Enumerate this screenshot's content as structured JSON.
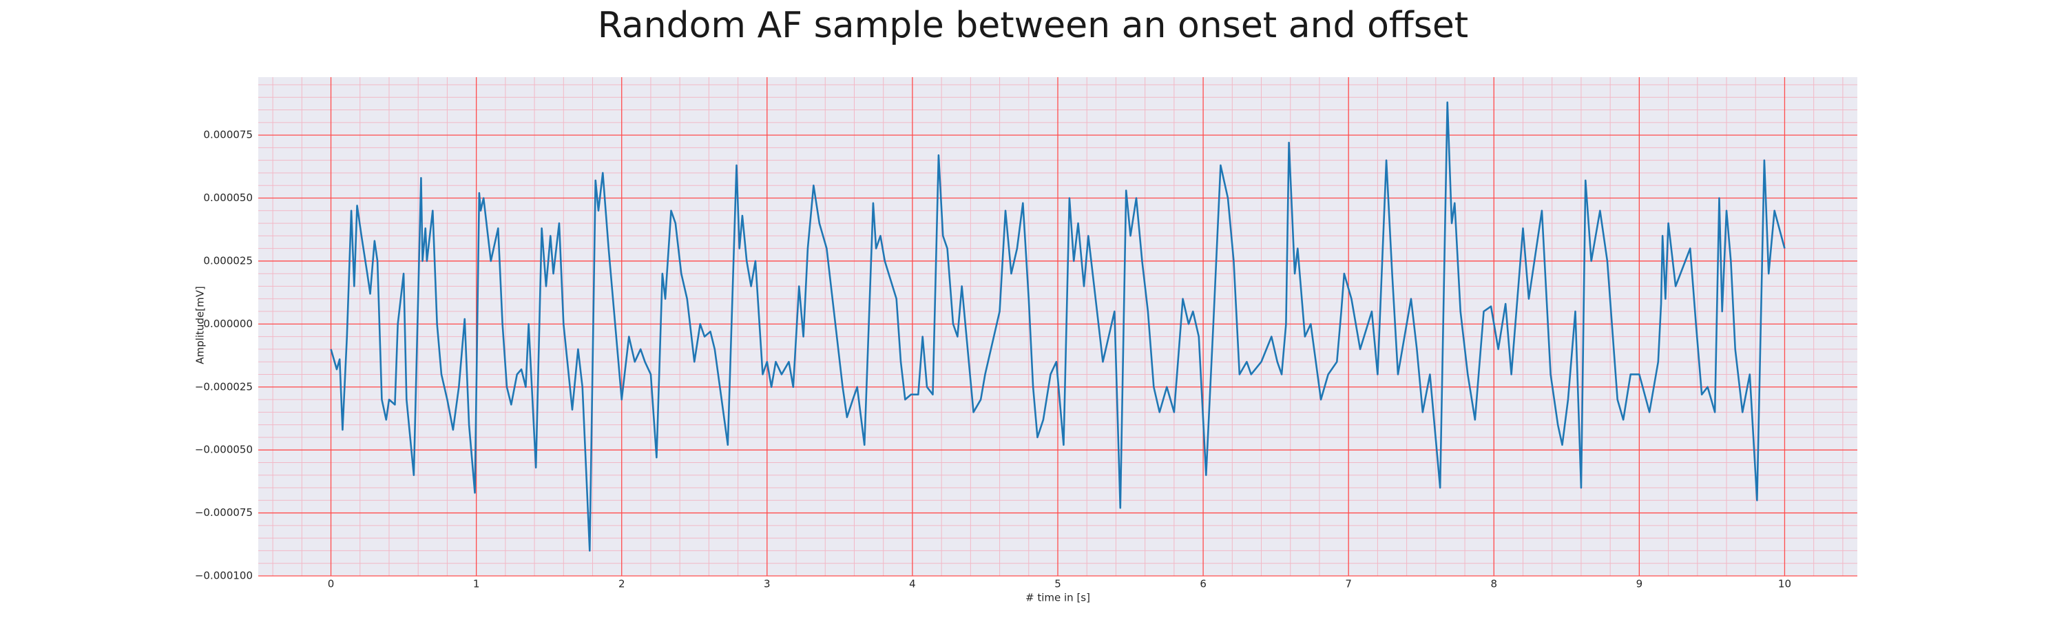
{
  "chart_data": {
    "type": "line",
    "title": "Random AF sample between an onset and offset",
    "xlabel": "# time in [s]",
    "ylabel": "Amplitude[mV]",
    "color": "#1f77b4",
    "background": "#eaeaf2",
    "grid": true,
    "grid_color": "#ff4d4d",
    "minor_grid": true,
    "minor_grid_color": "#f2b8c6",
    "minor_divisions": 5,
    "xlim": [
      -0.5,
      10.5
    ],
    "ylim": [
      -0.0001,
      9.8e-05
    ],
    "xticks": [
      0,
      1,
      2,
      3,
      4,
      5,
      6,
      7,
      8,
      9,
      10
    ],
    "yticks": [
      {
        "value": 7.5e-05,
        "label": "0.000075"
      },
      {
        "value": 5e-05,
        "label": "0.000050"
      },
      {
        "value": 2.5e-05,
        "label": "0.000025"
      },
      {
        "value": 0,
        "label": "0.000000"
      },
      {
        "value": -2.5e-05,
        "label": "−0.000025"
      },
      {
        "value": -5e-05,
        "label": "−0.000050"
      },
      {
        "value": -7.5e-05,
        "label": "−0.000075"
      },
      {
        "value": -0.0001,
        "label": "−0.000100"
      }
    ],
    "x": [
      0,
      0.04,
      0.06,
      0.08,
      0.11,
      0.14,
      0.16,
      0.18,
      0.21,
      0.25,
      0.27,
      0.3,
      0.32,
      0.35,
      0.38,
      0.4,
      0.44,
      0.46,
      0.5,
      0.52,
      0.57,
      0.62,
      0.63,
      0.65,
      0.66,
      0.7,
      0.73,
      0.76,
      0.8,
      0.84,
      0.88,
      0.92,
      0.95,
      0.99,
      1.02,
      1.03,
      1.05,
      1.08,
      1.1,
      1.15,
      1.18,
      1.21,
      1.24,
      1.28,
      1.31,
      1.34,
      1.36,
      1.41,
      1.45,
      1.48,
      1.51,
      1.53,
      1.57,
      1.6,
      1.66,
      1.7,
      1.73,
      1.78,
      1.82,
      1.84,
      1.87,
      1.91,
      1.94,
      2.0,
      2.05,
      2.09,
      2.13,
      2.16,
      2.2,
      2.24,
      2.28,
      2.3,
      2.34,
      2.37,
      2.41,
      2.45,
      2.5,
      2.54,
      2.57,
      2.61,
      2.64,
      2.73,
      2.79,
      2.81,
      2.83,
      2.86,
      2.89,
      2.92,
      2.97,
      3.0,
      3.03,
      3.06,
      3.1,
      3.15,
      3.18,
      3.22,
      3.25,
      3.28,
      3.32,
      3.36,
      3.41,
      3.45,
      3.52,
      3.55,
      3.59,
      3.62,
      3.67,
      3.73,
      3.75,
      3.78,
      3.81,
      3.89,
      3.92,
      3.95,
      3.99,
      4.04,
      4.07,
      4.1,
      4.14,
      4.18,
      4.21,
      4.24,
      4.28,
      4.31,
      4.34,
      4.38,
      4.42,
      4.47,
      4.5,
      4.56,
      4.6,
      4.64,
      4.68,
      4.72,
      4.76,
      4.8,
      4.83,
      4.86,
      4.9,
      4.95,
      4.99,
      5.04,
      5.08,
      5.11,
      5.14,
      5.18,
      5.21,
      5.26,
      5.31,
      5.35,
      5.39,
      5.43,
      5.47,
      5.5,
      5.54,
      5.58,
      5.62,
      5.66,
      5.7,
      5.75,
      5.8,
      5.86,
      5.9,
      5.93,
      5.97,
      6.02,
      6.07,
      6.12,
      6.17,
      6.21,
      6.25,
      6.3,
      6.33,
      6.4,
      6.47,
      6.51,
      6.54,
      6.57,
      6.59,
      6.63,
      6.65,
      6.7,
      6.74,
      6.81,
      6.86,
      6.92,
      6.95,
      6.97,
      7.02,
      7.08,
      7.16,
      7.2,
      7.26,
      7.3,
      7.34,
      7.43,
      7.47,
      7.51,
      7.56,
      7.63,
      7.68,
      7.71,
      7.73,
      7.77,
      7.82,
      7.87,
      7.93,
      7.98,
      8.03,
      8.08,
      8.12,
      8.2,
      8.24,
      8.33,
      8.39,
      8.44,
      8.47,
      8.51,
      8.56,
      8.6,
      8.63,
      8.67,
      8.73,
      8.78,
      8.85,
      8.89,
      8.94,
      9.0,
      9.07,
      9.13,
      9.15,
      9.16,
      9.18,
      9.2,
      9.25,
      9.35,
      9.39,
      9.43,
      9.47,
      9.52,
      9.55,
      9.57,
      9.6,
      9.63,
      9.66,
      9.71,
      9.76,
      9.81,
      9.86,
      9.89,
      9.93,
      10.0
    ],
    "values": [
      -1e-05,
      -1.8e-05,
      -1.4e-05,
      -4.2e-05,
      -5e-06,
      4.5e-05,
      1.5e-05,
      4.7e-05,
      3.5e-05,
      2e-05,
      1.2e-05,
      3.3e-05,
      2.5e-05,
      -3e-05,
      -3.8e-05,
      -3e-05,
      -3.2e-05,
      0,
      2e-05,
      -3e-05,
      -6e-05,
      5.8e-05,
      2.5e-05,
      3.8e-05,
      2.5e-05,
      4.5e-05,
      0,
      -2e-05,
      -3e-05,
      -4.2e-05,
      -2.5e-05,
      2e-06,
      -4e-05,
      -6.7e-05,
      5.2e-05,
      4.5e-05,
      5e-05,
      3.5e-05,
      2.5e-05,
      3.8e-05,
      0,
      -2.5e-05,
      -3.2e-05,
      -2e-05,
      -1.8e-05,
      -2.5e-05,
      0,
      -5.7e-05,
      3.8e-05,
      1.5e-05,
      3.5e-05,
      2e-05,
      4e-05,
      0,
      -3.4e-05,
      -1e-05,
      -2.5e-05,
      -9e-05,
      5.7e-05,
      4.5e-05,
      6e-05,
      3e-05,
      1e-05,
      -3e-05,
      -5e-06,
      -1.5e-05,
      -1e-05,
      -1.5e-05,
      -2e-05,
      -5.3e-05,
      2e-05,
      1e-05,
      4.5e-05,
      4e-05,
      2e-05,
      1e-05,
      -1.5e-05,
      0,
      -5e-06,
      -3e-06,
      -1e-05,
      -4.8e-05,
      6.3e-05,
      3e-05,
      4.3e-05,
      2.5e-05,
      1.5e-05,
      2.5e-05,
      -2e-05,
      -1.5e-05,
      -2.5e-05,
      -1.5e-05,
      -2e-05,
      -1.5e-05,
      -2.5e-05,
      1.5e-05,
      -5e-06,
      3e-05,
      5.5e-05,
      4e-05,
      3e-05,
      1e-05,
      -2.5e-05,
      -3.7e-05,
      -3e-05,
      -2.5e-05,
      -4.8e-05,
      4.8e-05,
      3e-05,
      3.5e-05,
      2.5e-05,
      1e-05,
      -1.5e-05,
      -3e-05,
      -2.8e-05,
      -2.8e-05,
      -5e-06,
      -2.5e-05,
      -2.8e-05,
      6.7e-05,
      3.5e-05,
      3e-05,
      0,
      -5e-06,
      1.5e-05,
      -1e-05,
      -3.5e-05,
      -3e-05,
      -2e-05,
      -5e-06,
      5e-06,
      4.5e-05,
      2e-05,
      3e-05,
      4.8e-05,
      1e-05,
      -2.5e-05,
      -4.5e-05,
      -3.8e-05,
      -2e-05,
      -1.5e-05,
      -4.8e-05,
      5e-05,
      2.5e-05,
      4e-05,
      1.5e-05,
      3.5e-05,
      1e-05,
      -1.5e-05,
      -5e-06,
      5e-06,
      -7.3e-05,
      5.3e-05,
      3.5e-05,
      5e-05,
      2.5e-05,
      5e-06,
      -2.5e-05,
      -3.5e-05,
      -2.5e-05,
      -3.5e-05,
      1e-05,
      0,
      5e-06,
      -5e-06,
      -6e-05,
      0,
      6.3e-05,
      5e-05,
      2.5e-05,
      -2e-05,
      -1.5e-05,
      -2e-05,
      -1.5e-05,
      -5e-06,
      -1.5e-05,
      -2e-05,
      0,
      7.2e-05,
      2e-05,
      3e-05,
      -5e-06,
      0,
      -3e-05,
      -2e-05,
      -1.5e-05,
      5e-06,
      2e-05,
      1e-05,
      -1e-05,
      5e-06,
      -2e-05,
      6.5e-05,
      2e-05,
      -2e-05,
      1e-05,
      -1e-05,
      -3.5e-05,
      -2e-05,
      -6.5e-05,
      8.8e-05,
      4e-05,
      4.8e-05,
      5e-06,
      -2e-05,
      -3.8e-05,
      5e-06,
      7e-06,
      -1e-05,
      8e-06,
      -2e-05,
      3.8e-05,
      1e-05,
      4.5e-05,
      -2e-05,
      -4e-05,
      -4.8e-05,
      -3e-05,
      5e-06,
      -6.5e-05,
      5.7e-05,
      2.5e-05,
      4.5e-05,
      2.5e-05,
      -3e-05,
      -3.8e-05,
      -2e-05,
      -2e-05,
      -3.5e-05,
      -1.5e-05,
      8e-06,
      3.5e-05,
      1e-05,
      4e-05,
      1.5e-05,
      3e-05,
      0,
      -2.8e-05,
      -2.5e-05,
      -3.5e-05,
      5e-05,
      5e-06,
      4.5e-05,
      2.5e-05,
      -1e-05,
      -3.5e-05,
      -2e-05,
      -7e-05,
      6.5e-05,
      2e-05,
      4.5e-05,
      3e-05
    ]
  }
}
